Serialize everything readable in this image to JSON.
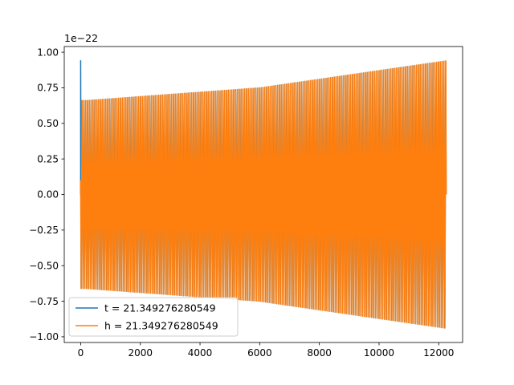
{
  "chart_data": {
    "type": "line",
    "title": "",
    "xlabel": "",
    "ylabel": "",
    "y_offset_label": "1e−22",
    "xlim": [
      -550,
      12800
    ],
    "ylim": [
      -1.04,
      1.04
    ],
    "x_ticks": [
      0,
      2000,
      4000,
      6000,
      8000,
      10000,
      12000
    ],
    "x_tick_labels": [
      "0",
      "2000",
      "4000",
      "6000",
      "8000",
      "10000",
      "12000"
    ],
    "y_ticks": [
      1.0,
      0.75,
      0.5,
      0.25,
      0.0,
      -0.25,
      -0.5,
      -0.75,
      -1.0
    ],
    "y_tick_labels": [
      "1.00",
      "0.75",
      "0.50",
      "0.25",
      "0.00",
      "−0.25",
      "−0.50",
      "−0.75",
      "−1.00"
    ],
    "grid": false,
    "legend_position": "lower-left",
    "series": [
      {
        "name": "t = 21.349276280549",
        "color": "#1f77b4",
        "x_range": [
          0,
          12250
        ],
        "initial_spike": 0.94,
        "envelope": {
          "x": [
            150,
            6000,
            12250
          ],
          "amplitude": [
            0.66,
            0.75,
            0.94
          ]
        },
        "cycles": 200
      },
      {
        "name": "h = 21.349276280549",
        "color": "#ff7f0e",
        "x_range": [
          0,
          12250
        ],
        "initial_value": 0.1,
        "envelope": {
          "x": [
            150,
            6000,
            12250
          ],
          "amplitude": [
            0.66,
            0.75,
            0.94
          ]
        },
        "cycles": 200
      }
    ]
  }
}
